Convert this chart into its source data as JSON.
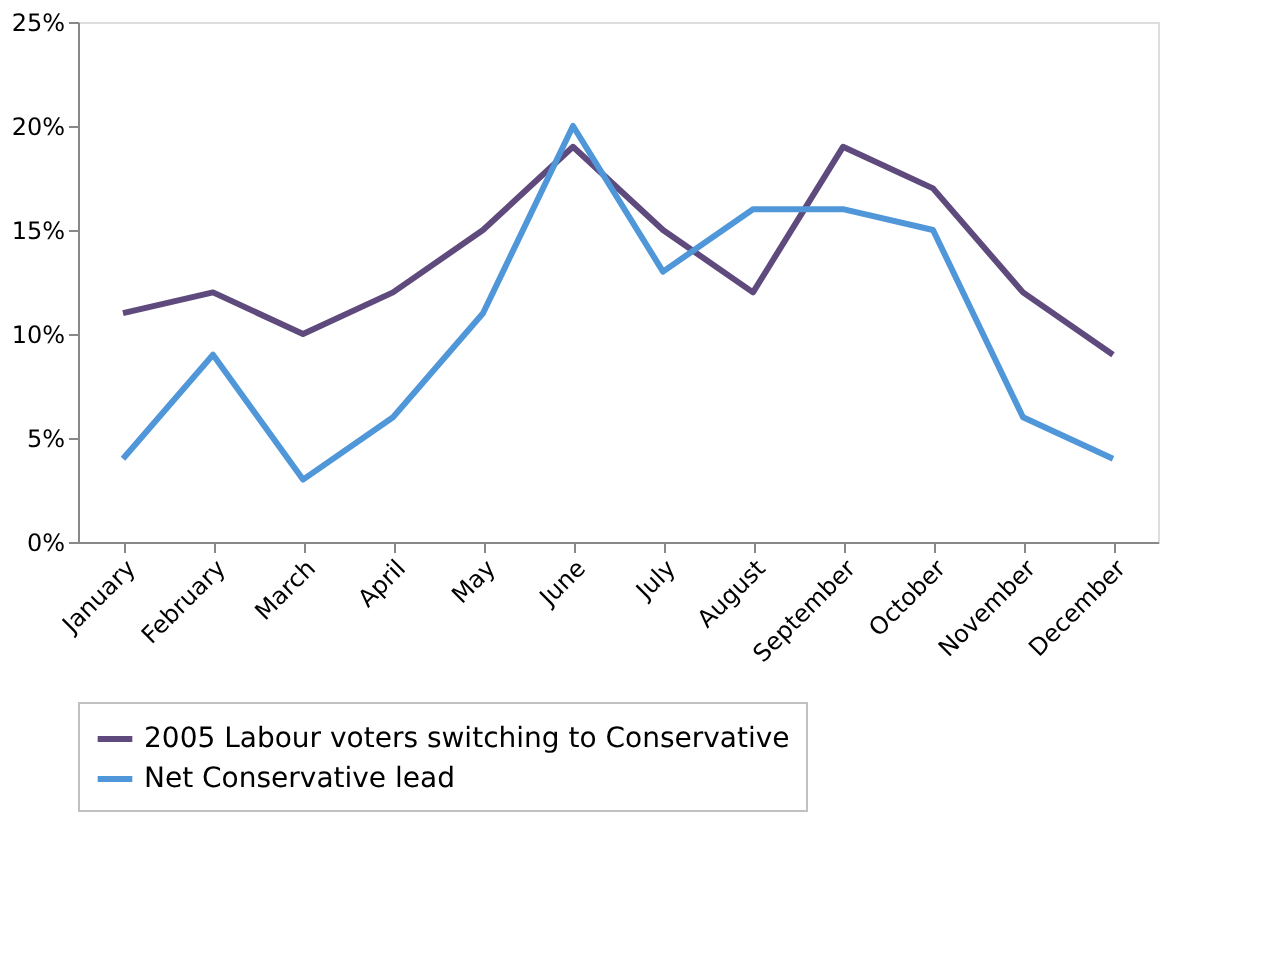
{
  "chart_data": {
    "type": "line",
    "categories": [
      "January",
      "February",
      "March",
      "April",
      "May",
      "June",
      "July",
      "August",
      "September",
      "October",
      "November",
      "December"
    ],
    "series": [
      {
        "name": "2005 Labour voters switching to Conservative",
        "color": "#5e4a7c",
        "values": [
          11,
          12,
          10,
          12,
          15,
          19,
          15,
          12,
          19,
          17,
          12,
          9
        ]
      },
      {
        "name": "Net Conservative lead",
        "color": "#4f97d9",
        "values": [
          4,
          9,
          3,
          6,
          11,
          20,
          13,
          16,
          16,
          15,
          6,
          4
        ]
      }
    ],
    "ylim": [
      0,
      25
    ],
    "yticks": [
      {
        "value": 0,
        "label": "0%"
      },
      {
        "value": 5,
        "label": "5%"
      },
      {
        "value": 10,
        "label": "10%"
      },
      {
        "value": 15,
        "label": "15%"
      },
      {
        "value": 20,
        "label": "20%"
      },
      {
        "value": 25,
        "label": "25%"
      }
    ],
    "grid": false,
    "legend": "bottom",
    "marker": "none",
    "line_style": "solid"
  }
}
